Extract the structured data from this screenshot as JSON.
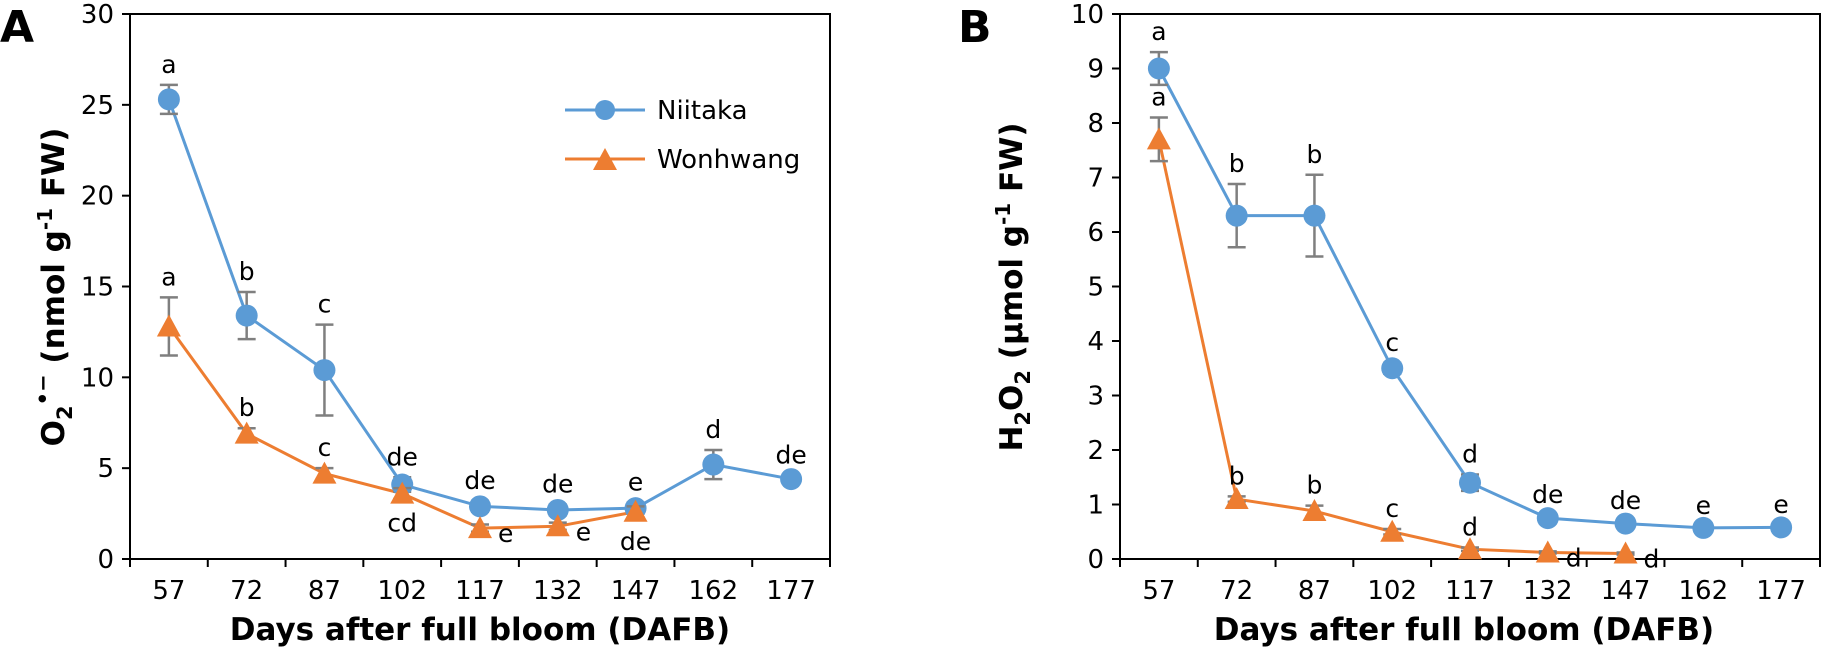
{
  "legend": [
    {
      "name": "Niitaka",
      "color": "#5B9BD5",
      "marker": "circle"
    },
    {
      "name": "Wonhwang",
      "color": "#ED7D31",
      "marker": "triangle"
    }
  ],
  "chart_data": [
    {
      "panel": "A",
      "type": "line",
      "xlabel": "Days after full bloom (DAFB)",
      "ylabel": "O2•− (nmol g-1 FW)",
      "ylabel_parts": {
        "O": "O",
        "sub": "2",
        "sup": "•−",
        "rest": " (nmol g",
        "exp": "-1",
        "tail": " FW)"
      },
      "x": [
        57,
        72,
        87,
        102,
        117,
        132,
        147,
        162,
        177
      ],
      "ylim": [
        0,
        30
      ],
      "yticks": [
        0,
        5,
        10,
        15,
        20,
        25,
        30
      ],
      "legend_position": "top-right",
      "series": [
        {
          "name": "Niitaka",
          "values": [
            25.3,
            13.4,
            10.4,
            4.1,
            2.9,
            2.7,
            2.8,
            5.2,
            4.4
          ],
          "errors": [
            0.8,
            1.3,
            2.5,
            0.4,
            0.3,
            0.3,
            0.3,
            0.8,
            0.2
          ],
          "labels": [
            "a",
            "b",
            "c",
            "de",
            "de",
            "de",
            "e",
            "d",
            "de"
          ]
        },
        {
          "name": "Wonhwang",
          "values": [
            12.8,
            6.9,
            4.7,
            3.6,
            1.7,
            1.8,
            2.6,
            null,
            null
          ],
          "errors": [
            1.6,
            0.3,
            0.3,
            0.3,
            0.2,
            0.2,
            0.3,
            null,
            null
          ],
          "labels": [
            "a",
            "b",
            "c",
            "cd",
            "e",
            "e",
            "de",
            null,
            null
          ]
        }
      ]
    },
    {
      "panel": "B",
      "type": "line",
      "xlabel": "Days after full bloom (DAFB)",
      "ylabel": "H2O2 (µmol g-1 FW)",
      "ylabel_parts": {
        "H": "H",
        "sub1": "2",
        "O": "O",
        "sub2": "2",
        "rest": " (µmol g",
        "exp": "-1",
        "tail": " FW)"
      },
      "x": [
        57,
        72,
        87,
        102,
        117,
        132,
        147,
        162,
        177
      ],
      "ylim": [
        0,
        10
      ],
      "yticks": [
        0,
        1,
        2,
        3,
        4,
        5,
        6,
        7,
        8,
        9,
        10
      ],
      "series": [
        {
          "name": "Niitaka",
          "values": [
            9.0,
            6.3,
            6.3,
            3.5,
            1.4,
            0.75,
            0.65,
            0.57,
            0.58
          ],
          "errors": [
            0.3,
            0.58,
            0.75,
            0.1,
            0.15,
            0.06,
            0.05,
            0.04,
            0.04
          ],
          "labels": [
            "a",
            "b",
            "b",
            "c",
            "d",
            "de",
            "de",
            "e",
            "e"
          ]
        },
        {
          "name": "Wonhwang",
          "values": [
            7.7,
            1.1,
            0.88,
            0.5,
            0.18,
            0.12,
            0.1,
            null,
            null
          ],
          "errors": [
            0.4,
            0.05,
            0.1,
            0.05,
            0.03,
            0.02,
            0.02,
            null,
            null
          ],
          "labels": [
            "a",
            "b",
            "b",
            "c",
            "d",
            "d",
            "d",
            null,
            null
          ]
        }
      ]
    }
  ]
}
